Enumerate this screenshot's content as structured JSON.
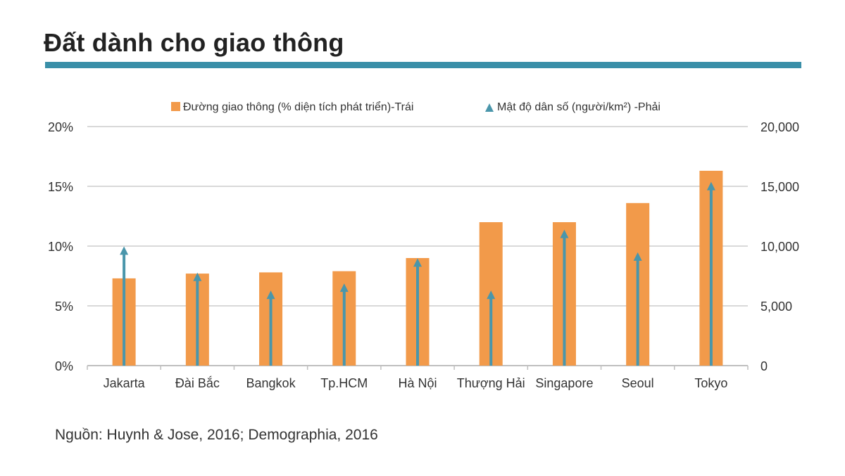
{
  "header": {
    "title": "Đất dành cho giao thông"
  },
  "footer": {
    "source": "Nguồn: Huynh & Jose, 2016; Demographia, 2016"
  },
  "colors": {
    "bar": "#f29a4a",
    "line": "#4a96ab",
    "title_rule": "#3a8fa8",
    "grid": "#d9d9d9"
  },
  "chart_data": {
    "type": "bar",
    "categories": [
      "Jakarta",
      "Đài Bắc",
      "Bangkok",
      "Tp.HCM",
      "Hà Nội",
      "Thượng Hải",
      "Singapore",
      "Seoul",
      "Tokyo"
    ],
    "series": [
      {
        "name": "Đường giao thông (% diện tích phát triển)-Trái",
        "axis": "left",
        "mark": "bar",
        "values": [
          7.3,
          7.7,
          7.8,
          7.9,
          9.0,
          12.0,
          12.0,
          13.6,
          16.3
        ]
      },
      {
        "name": "Mật độ dân số (người/km²) -Phải",
        "axis": "right",
        "mark": "arrow",
        "values": [
          9800,
          7600,
          6100,
          6700,
          8800,
          6100,
          11200,
          9300,
          15200
        ]
      }
    ],
    "left_axis": {
      "min": 0,
      "max": 20,
      "ticks": [
        "0%",
        "5%",
        "10%",
        "15%",
        "20%"
      ]
    },
    "right_axis": {
      "min": 0,
      "max": 20000,
      "ticks": [
        "0",
        "5,000",
        "10,000",
        "15,000",
        "20,000"
      ]
    },
    "grid": true,
    "legend_position": "top"
  }
}
